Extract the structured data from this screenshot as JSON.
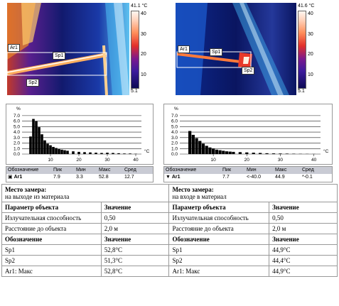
{
  "left": {
    "max_label": "41.1 °C",
    "min_label": "5.1",
    "ticks": [
      "40",
      "30",
      "20",
      "10"
    ],
    "markers": {
      "ar1": "Ar1",
      "sp1": "Sp1",
      "sp2": "Sp2"
    },
    "hist": {
      "y_unit": "%",
      "x_unit": "°C",
      "y_ticks": [
        "7.0",
        "6.0",
        "5.0",
        "4.0",
        "3.0",
        "2.0",
        "1.0",
        "0.0"
      ],
      "x_ticks": [
        "10",
        "20",
        "30",
        "40"
      ]
    },
    "stat_headers": [
      "Обозначение",
      "Пик",
      "Мин",
      "Макс",
      "Сред"
    ],
    "stat_row": [
      "Ar1",
      "7.9",
      "3.3",
      "52.8",
      "12.7"
    ]
  },
  "right": {
    "max_label": "41.6 °C",
    "min_label": "5.1",
    "ticks": [
      "40",
      "30",
      "20",
      "10"
    ],
    "markers": {
      "ar1": "Ar1",
      "sp1": "Sp1",
      "sp2": "Sp2"
    },
    "hist": {
      "y_unit": "%",
      "x_unit": "°C",
      "y_ticks": [
        "7.0",
        "6.0",
        "5.0",
        "4.0",
        "3.0",
        "2.0",
        "1.0",
        "0.0"
      ],
      "x_ticks": [
        "10",
        "20",
        "30",
        "40"
      ]
    },
    "stat_headers": [
      "Обозначение",
      "Пик",
      "Мин",
      "Макс",
      "Сред"
    ],
    "stat_row": [
      "Ar1",
      "7.7",
      "<-40.0",
      "44.9",
      "*-0.1"
    ]
  },
  "chart_data": [
    {
      "type": "bar",
      "xlim": [
        0,
        42
      ],
      "ylim": [
        0,
        7.5
      ],
      "x": [
        3,
        4,
        5,
        6,
        7,
        8,
        9,
        10,
        11,
        12,
        13,
        14,
        15,
        16,
        18,
        20,
        22,
        24,
        26,
        28,
        30,
        32,
        34,
        36,
        38,
        40
      ],
      "values": [
        3.2,
        6.4,
        6.0,
        4.9,
        3.6,
        2.5,
        1.9,
        1.6,
        1.3,
        1.1,
        0.9,
        0.8,
        0.7,
        0.6,
        0.5,
        0.4,
        0.35,
        0.3,
        0.25,
        0.2,
        0.25,
        0.2,
        0.15,
        0.1,
        0.1,
        0.05
      ],
      "xticks": [
        "10",
        "20",
        "30",
        "40"
      ],
      "yticks": [
        "0.0",
        "1.0",
        "2.0",
        "3.0",
        "4.0",
        "5.0",
        "6.0",
        "7.0"
      ],
      "ylabel": "%",
      "xlabel": "°C"
    },
    {
      "type": "bar",
      "xlim": [
        0,
        42
      ],
      "ylim": [
        0,
        7.5
      ],
      "x": [
        3,
        4,
        5,
        6,
        7,
        8,
        9,
        10,
        11,
        12,
        13,
        14,
        15,
        16,
        18,
        20,
        22,
        24,
        26,
        28,
        30,
        32,
        34,
        36,
        38,
        40
      ],
      "values": [
        4.2,
        3.5,
        2.9,
        2.4,
        1.9,
        1.5,
        1.2,
        1.0,
        0.8,
        0.7,
        0.6,
        0.5,
        0.45,
        0.4,
        0.35,
        0.3,
        0.25,
        0.2,
        0.15,
        0.12,
        0.1,
        0.08,
        0.06,
        0.04,
        0.03,
        0.02
      ],
      "xticks": [
        "10",
        "20",
        "30",
        "40"
      ],
      "yticks": [
        "0.0",
        "1.0",
        "2.0",
        "3.0",
        "4.0",
        "5.0",
        "6.0",
        "7.0"
      ],
      "ylabel": "%",
      "xlabel": "°C"
    }
  ],
  "report": {
    "left": {
      "place_title": "Место замера:",
      "place_value": "на выходе из материала",
      "param_header": "Параметр объекта",
      "value_header": "Значение",
      "emissivity_label": "Излучательная способность",
      "emissivity_value": "0,50",
      "distance_label": "Расстояние до объекта",
      "distance_value": "2,0 м",
      "designation_header": "Обозначение",
      "value_header2": "Значение",
      "rows": [
        {
          "name": "Sp1",
          "value": "52,8°C"
        },
        {
          "name": "Sp2",
          "value": "51,3°C"
        },
        {
          "name": "Ar1: Макс",
          "value": "52,8°C"
        }
      ]
    },
    "right": {
      "place_title": "Место замера:",
      "place_value": "на входе в материал",
      "param_header": "Параметр объекта",
      "value_header": "Значение",
      "emissivity_label": "Излучательная способность",
      "emissivity_value": "0,50",
      "distance_label": "Расстояние до объекта",
      "distance_value": "2,0 м",
      "designation_header": "Обозначение",
      "value_header2": "Значение",
      "rows": [
        {
          "name": "Sp1",
          "value": "44,9°C"
        },
        {
          "name": "Sp2",
          "value": "44,4°C"
        },
        {
          "name": "Ar1: Макс",
          "value": "44,9°C"
        }
      ]
    }
  }
}
